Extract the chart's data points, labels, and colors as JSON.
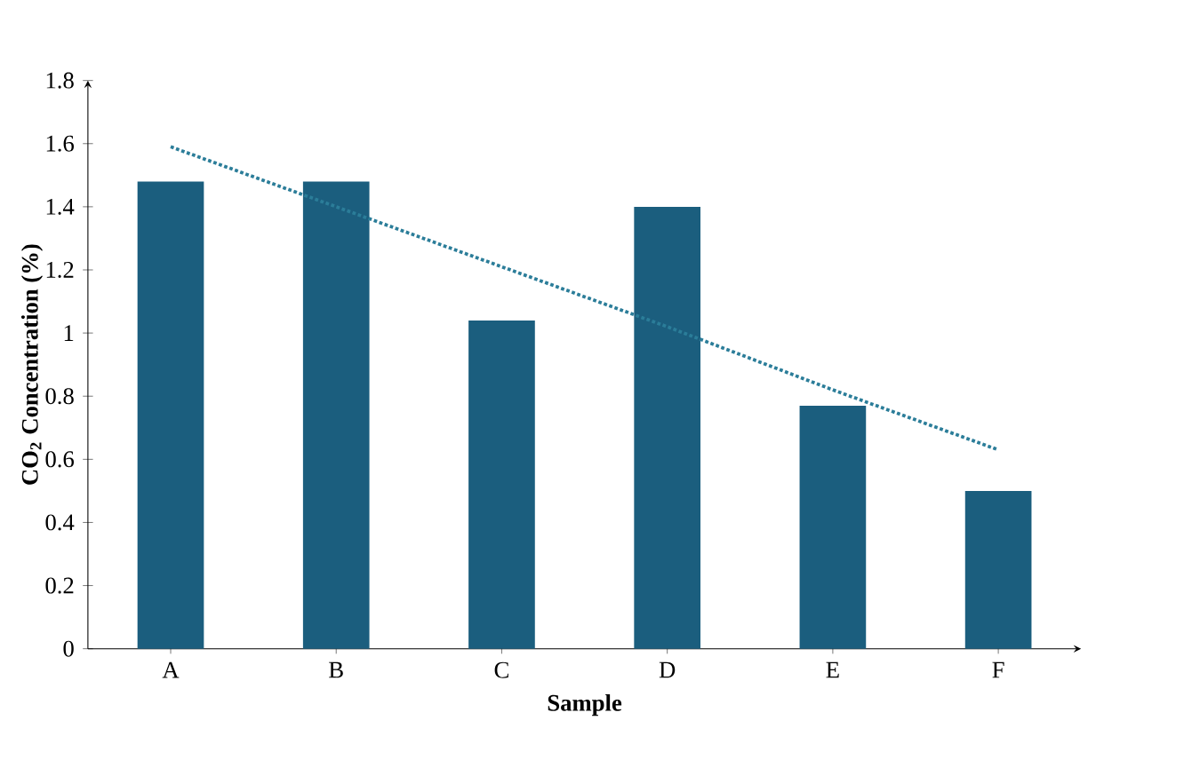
{
  "chart_data": {
    "type": "bar",
    "xlabel": "Sample",
    "ylabel": "CO$_{2}$ Concentration (%)",
    "categories": [
      "A",
      "B",
      "C",
      "D",
      "E",
      "F"
    ],
    "series": [
      {
        "color": "#1b5e7e",
        "values": [
          1.48,
          1.48,
          1.04,
          1.4,
          0.77,
          0.5
        ]
      },
      {
        "type": "line",
        "color": "#2b7d99",
        "line_style": "dotted",
        "values": [
          1.59,
          1.4,
          1.21,
          1.02,
          0.82,
          0.63
        ]
      }
    ],
    "ylim": [
      0,
      1.8
    ],
    "yticks": [
      0,
      0.2,
      0.4,
      0.6,
      0.8,
      1,
      1.2,
      1.4,
      1.6,
      1.8
    ],
    "grid": false
  }
}
